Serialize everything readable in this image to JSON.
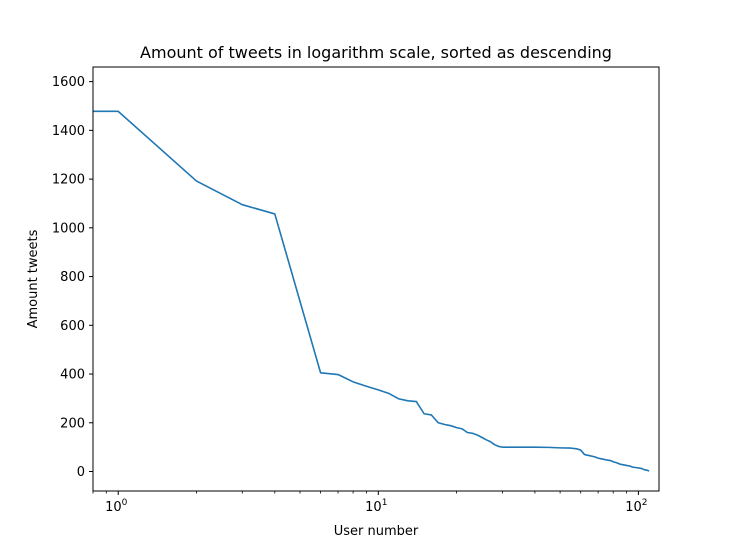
{
  "colors": {
    "line": "#1f77b4",
    "axes": "#000000",
    "background": "#ffffff"
  },
  "chart_data": {
    "type": "line",
    "title": "Amount of tweets in logarithm scale, sorted as descending",
    "xlabel": "User number",
    "ylabel": "Amount tweets",
    "xscale": "log",
    "grid": false,
    "legend": "none",
    "xlim": [
      0.8,
      120
    ],
    "ylim": [
      -80,
      1660
    ],
    "xticks": [
      {
        "value": 1,
        "base": "10",
        "exp": "0"
      },
      {
        "value": 10,
        "base": "10",
        "exp": "1"
      },
      {
        "value": 100,
        "base": "10",
        "exp": "2"
      }
    ],
    "yticks": [
      0,
      200,
      400,
      600,
      800,
      1000,
      1200,
      1400,
      1600
    ],
    "series": [
      {
        "x": [
          0,
          1,
          2,
          3,
          4,
          6,
          7,
          8,
          9,
          10,
          11,
          12,
          13,
          14,
          15,
          16,
          17,
          18,
          19,
          20,
          21,
          22,
          23,
          24,
          25,
          26,
          27,
          28,
          29,
          30,
          31,
          32,
          33,
          35,
          40,
          45,
          50,
          55,
          58,
          60,
          62,
          63,
          65,
          68,
          70,
          72,
          75,
          78,
          80,
          83,
          85,
          88,
          90,
          93,
          95,
          98,
          100,
          103,
          105,
          108,
          110
        ],
        "y": [
          1478,
          1478,
          1192,
          1095,
          1057,
          405,
          398,
          368,
          350,
          335,
          320,
          298,
          290,
          287,
          237,
          232,
          200,
          193,
          188,
          180,
          175,
          160,
          157,
          150,
          140,
          130,
          122,
          110,
          103,
          100,
          100,
          100,
          100,
          100,
          100,
          99,
          97,
          96,
          93,
          88,
          70,
          68,
          65,
          60,
          55,
          52,
          48,
          45,
          40,
          35,
          30,
          27,
          25,
          22,
          18,
          16,
          15,
          12,
          8,
          5,
          2
        ]
      }
    ]
  }
}
